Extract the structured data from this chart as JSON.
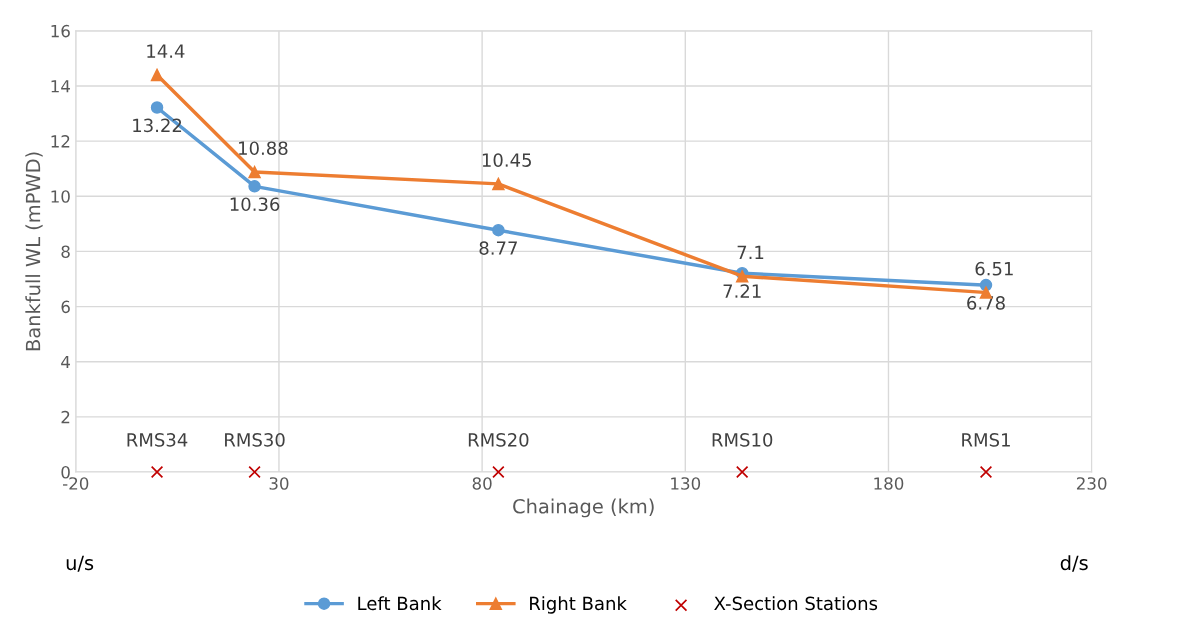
{
  "chart_data": {
    "type": "line",
    "xlabel": "Chainage (km)",
    "ylabel": "Bankfull WL (mPWD)",
    "xlim": [
      -20,
      230
    ],
    "xticks": [
      -20,
      30,
      80,
      130,
      180,
      230
    ],
    "ylim": [
      0,
      16
    ],
    "yticks": [
      0,
      2,
      4,
      6,
      8,
      10,
      12,
      14,
      16
    ],
    "grid": true,
    "legend": "bottom",
    "series": [
      {
        "name": "Left Bank",
        "color": "#5b9bd5",
        "marker": "circle",
        "x": [
          0,
          24,
          84,
          144,
          204
        ],
        "values": [
          13.22,
          10.36,
          8.77,
          7.21,
          6.78
        ],
        "value_labels": [
          "13.22",
          "10.36",
          "8.77",
          "7.21",
          "6.78"
        ]
      },
      {
        "name": "Right Bank",
        "color": "#ed7d31",
        "marker": "triangle",
        "x": [
          0,
          24,
          84,
          144,
          204
        ],
        "values": [
          14.4,
          10.88,
          10.45,
          7.1,
          6.51
        ],
        "value_labels": [
          "14.4",
          "10.88",
          "10.45",
          "7.1",
          "6.51"
        ]
      },
      {
        "name": "X-Section Stations",
        "type": "scatter",
        "color": "#c00000",
        "marker": "cross",
        "x": [
          0,
          24,
          84,
          144,
          204
        ],
        "values": [
          0,
          0,
          0,
          0,
          0
        ]
      }
    ],
    "annotations": [
      {
        "text": "RMS34",
        "x": 0,
        "y": 0
      },
      {
        "text": "RMS30",
        "x": 24,
        "y": 0
      },
      {
        "text": "RMS20",
        "x": 84,
        "y": 0
      },
      {
        "text": "RMS10",
        "x": 144,
        "y": 0
      },
      {
        "text": "RMS1",
        "x": 204,
        "y": 0
      },
      "u/s",
      "d/s"
    ]
  }
}
